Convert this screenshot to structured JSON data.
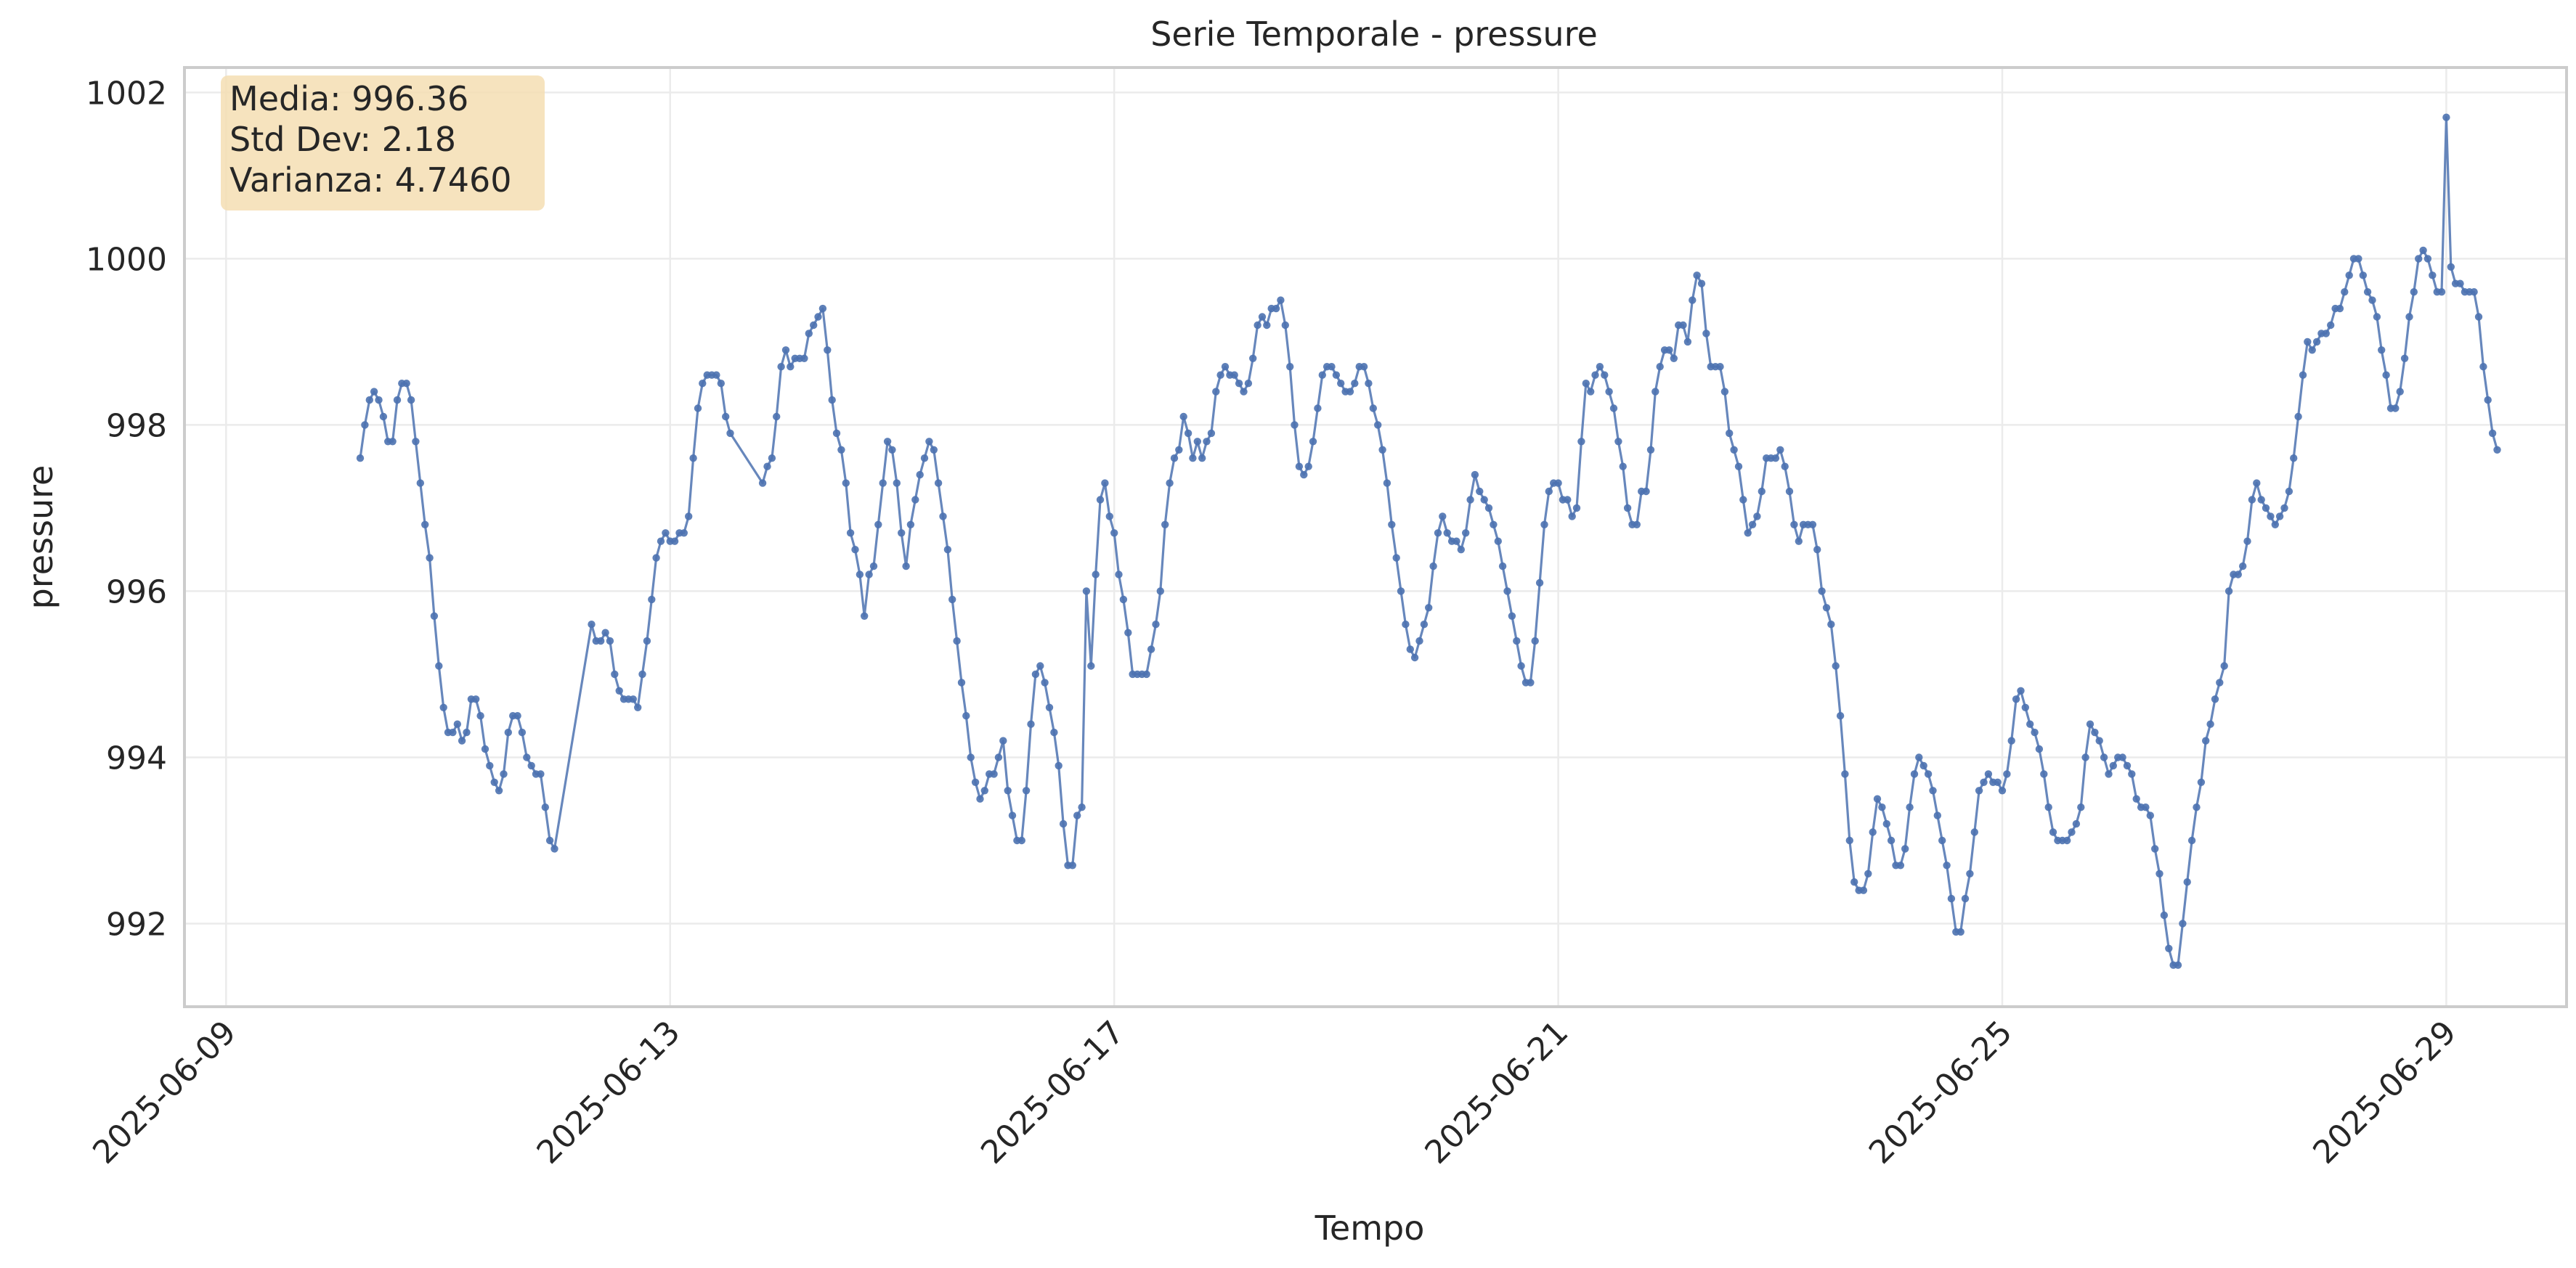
{
  "chart_data": {
    "type": "line",
    "title": "Serie Temporale - pressure",
    "xlabel": "Tempo",
    "ylabel": "pressure",
    "x_start": "2025-06-10T05:00",
    "x_step_hours": 1,
    "xlim": [
      "2025-06-08T15:00",
      "2025-06-30T02:00"
    ],
    "ylim": [
      991.0,
      1002.3
    ],
    "x_ticks": [
      "2025-06-09",
      "2025-06-13",
      "2025-06-17",
      "2025-06-21",
      "2025-06-25",
      "2025-06-29"
    ],
    "y_ticks": [
      992,
      994,
      996,
      998,
      1000,
      1002
    ],
    "grid": true,
    "line_color": "#4c72b0",
    "stats_box": {
      "lines": [
        "Media: 996.36",
        "Std Dev: 2.18",
        "Varianza: 4.7460"
      ],
      "background": "#f5deb3",
      "position": "top-left"
    },
    "series": [
      {
        "segments": [
          {
            "start": "2025-06-10T05:00",
            "values": [
              997.6,
              998.0,
              998.3,
              998.4,
              998.3,
              998.1,
              997.8,
              997.8,
              998.3,
              998.5,
              998.5,
              998.3,
              997.8,
              997.3,
              996.8,
              996.4,
              995.7,
              995.1,
              994.6,
              994.3,
              994.3,
              994.4,
              994.2,
              994.3,
              994.7,
              994.7,
              994.5,
              994.1,
              993.9,
              993.7,
              993.6,
              993.8,
              994.3,
              994.5,
              994.5,
              994.3,
              994.0,
              993.9,
              993.8,
              993.8,
              993.4,
              993.0,
              992.9
            ]
          },
          {
            "start": "2025-06-12T07:00",
            "values": [
              995.6,
              995.4,
              995.4,
              995.5,
              995.4,
              995.0,
              994.8,
              994.7,
              994.7,
              994.7,
              994.6,
              995.0,
              995.4,
              995.9,
              996.4,
              996.6,
              996.7,
              996.6,
              996.6,
              996.7,
              996.7,
              996.9,
              997.6,
              998.2,
              998.5,
              998.6,
              998.6,
              998.6,
              998.5,
              998.1,
              997.9
            ]
          },
          {
            "start": "2025-06-13T20:00",
            "values": [
              997.3,
              997.5,
              997.6,
              998.1,
              998.7,
              998.9,
              998.7,
              998.8,
              998.8,
              998.8,
              999.1,
              999.2,
              999.3,
              999.4,
              998.9,
              998.3,
              997.9,
              997.7,
              997.3,
              996.7,
              996.5,
              996.2,
              995.7,
              996.2,
              996.3,
              996.8,
              997.3,
              997.8,
              997.7,
              997.3,
              996.7,
              996.3,
              996.8,
              997.1,
              997.4,
              997.6,
              997.8,
              997.7,
              997.3,
              996.9,
              996.5,
              995.9,
              995.4,
              994.9,
              994.5,
              994.0,
              993.7,
              993.5,
              993.6,
              993.8,
              993.8,
              994.0,
              994.2,
              993.6,
              993.3,
              993.0,
              993.0,
              993.6,
              994.4,
              995.0,
              995.1,
              994.9,
              994.6,
              994.3,
              993.9,
              993.2,
              992.7,
              992.7,
              993.3,
              993.4,
              996.0,
              995.1,
              996.2,
              997.1,
              997.3,
              996.9,
              996.7,
              996.2,
              995.9,
              995.5,
              995.0,
              995.0,
              995.0,
              995.0,
              995.3,
              995.6,
              996.0,
              996.8,
              997.3,
              997.6,
              997.7,
              998.1,
              997.9,
              997.6,
              997.8,
              997.6,
              997.8,
              997.9,
              998.4,
              998.6,
              998.7,
              998.6,
              998.6,
              998.5,
              998.4,
              998.5,
              998.8,
              999.2,
              999.3,
              999.2,
              999.4,
              999.4,
              999.5,
              999.2,
              998.7,
              998.0,
              997.5,
              997.4,
              997.5,
              997.8,
              998.2,
              998.6,
              998.7,
              998.7,
              998.6,
              998.5,
              998.4,
              998.4,
              998.5,
              998.7,
              998.7,
              998.5,
              998.2,
              998.0,
              997.7,
              997.3,
              996.8,
              996.4,
              996.0,
              995.6,
              995.3,
              995.2,
              995.4,
              995.6,
              995.8,
              996.3,
              996.7,
              996.9,
              996.7,
              996.6,
              996.6,
              996.5,
              996.7,
              997.1,
              997.4,
              997.2,
              997.1,
              997.0,
              996.8,
              996.6,
              996.3,
              996.0,
              995.7,
              995.4,
              995.1,
              994.9,
              994.9,
              995.4,
              996.1,
              996.8,
              997.2,
              997.3,
              997.3,
              997.1,
              997.1,
              996.9,
              997.0,
              997.8,
              998.5,
              998.4,
              998.6,
              998.7,
              998.6,
              998.4,
              998.2,
              997.8,
              997.5,
              997.0,
              996.8,
              996.8,
              997.2,
              997.2,
              997.7,
              998.4,
              998.7,
              998.9,
              998.9,
              998.8,
              999.2,
              999.2,
              999.0,
              999.5,
              999.8,
              999.7,
              999.1,
              998.7,
              998.7,
              998.7,
              998.4,
              997.9,
              997.7,
              997.5,
              997.1,
              996.7,
              996.8,
              996.9,
              997.2,
              997.6,
              997.6,
              997.6,
              997.7,
              997.5,
              997.2,
              996.8,
              996.6,
              996.8,
              996.8,
              996.8,
              996.5,
              996.0,
              995.8,
              995.6,
              995.1,
              994.5,
              993.8,
              993.0,
              992.5,
              992.4,
              992.4,
              992.6,
              993.1,
              993.5,
              993.4,
              993.2,
              993.0,
              992.7,
              992.7,
              992.9,
              993.4,
              993.8,
              994.0,
              993.9,
              993.8,
              993.6,
              993.3,
              993.0,
              992.7,
              992.3,
              991.9,
              991.9,
              992.3,
              992.6,
              993.1,
              993.6,
              993.7,
              993.8,
              993.7,
              993.7,
              993.6,
              993.8,
              994.2,
              994.7,
              994.8,
              994.6,
              994.4,
              994.3,
              994.1,
              993.8,
              993.4,
              993.1,
              993.0,
              993.0,
              993.0,
              993.1,
              993.2,
              993.4,
              994.0,
              994.4,
              994.3,
              994.2,
              994.0,
              993.8,
              993.9,
              994.0,
              994.0,
              993.9,
              993.8,
              993.5,
              993.4,
              993.4,
              993.3,
              992.9,
              992.6,
              992.1,
              991.7,
              991.5,
              991.5,
              992.0,
              992.5,
              993.0,
              993.4,
              993.7,
              994.2,
              994.4,
              994.7,
              994.9,
              995.1,
              996.0,
              996.2,
              996.2,
              996.3,
              996.6,
              997.1,
              997.3,
              997.1,
              997.0,
              996.9,
              996.8,
              996.9,
              997.0,
              997.2,
              997.6,
              998.1,
              998.6,
              999.0,
              998.9,
              999.0,
              999.1,
              999.1,
              999.2,
              999.4,
              999.4,
              999.6,
              999.8,
              1000.0,
              1000.0,
              999.8,
              999.6,
              999.5,
              999.3,
              998.9,
              998.6,
              998.2,
              998.2,
              998.4,
              998.8,
              999.3,
              999.6,
              1000.0,
              1000.1,
              1000.0,
              999.8,
              999.6,
              999.6,
              1001.7,
              999.9,
              999.7,
              999.7,
              999.6,
              999.6,
              999.6,
              999.3,
              998.7,
              998.3,
              997.9,
              997.7
            ]
          }
        ]
      }
    ]
  }
}
